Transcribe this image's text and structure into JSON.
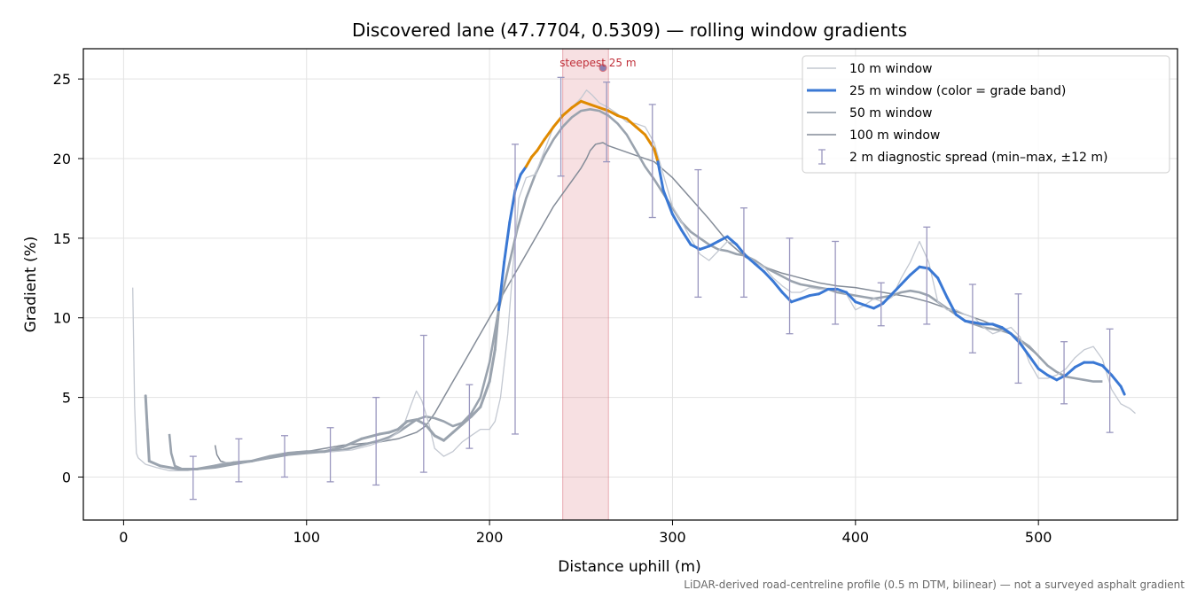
{
  "chart_data": {
    "type": "line",
    "title": "Discovered lane (47.7704, 0.5309) — rolling window gradients",
    "xlabel": "Distance uphill (m)",
    "ylabel": "Gradient (%)",
    "xlim": [
      -22,
      576
    ],
    "ylim": [
      -2.7,
      26.9
    ],
    "xticks": [
      0,
      100,
      200,
      300,
      400,
      500
    ],
    "yticks": [
      0,
      5,
      10,
      15,
      20,
      25
    ],
    "grid": true,
    "legend_placement": "top-right",
    "footnote": "LiDAR-derived road-centreline profile (0.5 m DTM, bilinear) — not a surveyed asphalt gradient",
    "highlight": {
      "x_range": [
        240,
        265
      ],
      "label": "steepest 25 m",
      "peak": [
        262,
        25.7
      ],
      "color": "#d9737d"
    },
    "colors": {
      "w10": "#c3c8d1",
      "w25_low": "#3a78d4",
      "w25_high": "#e08a00",
      "w50": "#9aa3ae",
      "w100": "#848c98",
      "errorbar": "#9a97bf"
    },
    "grade_band_threshold": 20,
    "series": [
      {
        "name": "10 m window",
        "x": [
          5,
          6,
          7,
          8,
          12,
          18,
          25,
          35,
          45,
          55,
          65,
          75,
          85,
          95,
          105,
          115,
          125,
          135,
          145,
          150,
          153,
          157,
          160,
          163,
          167,
          170,
          175,
          180,
          185,
          190,
          195,
          200,
          203,
          206,
          210,
          213,
          216,
          220,
          225,
          230,
          235,
          240,
          245,
          250,
          253,
          256,
          260,
          265,
          270,
          275,
          280,
          285,
          290,
          295,
          300,
          305,
          310,
          315,
          320,
          325,
          330,
          335,
          340,
          345,
          350,
          355,
          360,
          365,
          370,
          375,
          380,
          385,
          390,
          395,
          400,
          405,
          410,
          415,
          420,
          425,
          430,
          435,
          440,
          445,
          450,
          455,
          460,
          465,
          470,
          475,
          480,
          485,
          490,
          495,
          500,
          505,
          510,
          515,
          520,
          525,
          530,
          535,
          540,
          545,
          550,
          553
        ],
        "values": [
          11.9,
          4.5,
          1.5,
          1.2,
          0.8,
          0.6,
          0.4,
          0.4,
          0.6,
          0.9,
          0.9,
          1.1,
          1.4,
          1.6,
          1.6,
          1.6,
          1.7,
          2.0,
          2.4,
          2.8,
          3.2,
          4.5,
          5.4,
          4.8,
          3.3,
          1.8,
          1.3,
          1.6,
          2.2,
          2.6,
          3.0,
          3.0,
          3.5,
          5.0,
          9.0,
          13.5,
          17.5,
          18.8,
          19.0,
          20.5,
          22.0,
          22.8,
          23.2,
          23.8,
          24.3,
          24.0,
          23.5,
          23.2,
          22.8,
          22.3,
          22.2,
          22.0,
          21.0,
          19.0,
          17.0,
          16.0,
          15.0,
          14.0,
          13.6,
          14.2,
          14.8,
          14.6,
          14.0,
          13.5,
          13.2,
          12.5,
          12.0,
          11.6,
          11.6,
          11.9,
          11.8,
          11.8,
          11.8,
          11.5,
          10.5,
          10.8,
          11.2,
          11.0,
          11.3,
          12.5,
          13.5,
          14.8,
          13.5,
          11.0,
          10.5,
          10.5,
          10.2,
          10.0,
          9.4,
          9.0,
          9.2,
          9.4,
          8.8,
          7.2,
          6.2,
          6.2,
          6.4,
          6.8,
          7.5,
          8.0,
          8.2,
          7.4,
          5.5,
          4.6,
          4.3,
          4.0
        ]
      },
      {
        "name": "25 m window (color = grade band)",
        "x": [
          12,
          13,
          14,
          20,
          30,
          40,
          50,
          60,
          70,
          80,
          90,
          100,
          110,
          120,
          130,
          140,
          145,
          150,
          155,
          160,
          165,
          170,
          175,
          180,
          185,
          190,
          195,
          200,
          203,
          205,
          208,
          211,
          214,
          217,
          220,
          223,
          226,
          230,
          235,
          240,
          245,
          250,
          255,
          260,
          265,
          270,
          275,
          280,
          285,
          290,
          292,
          295,
          300,
          305,
          310,
          315,
          320,
          325,
          330,
          335,
          340,
          345,
          350,
          355,
          360,
          365,
          370,
          375,
          380,
          385,
          390,
          395,
          400,
          405,
          410,
          415,
          420,
          425,
          430,
          435,
          440,
          445,
          450,
          455,
          460,
          465,
          470,
          475,
          480,
          485,
          490,
          495,
          500,
          505,
          510,
          515,
          520,
          525,
          530,
          535,
          540,
          545,
          547
        ],
        "values": [
          5.1,
          3.0,
          1.0,
          0.7,
          0.5,
          0.5,
          0.7,
          0.9,
          1.0,
          1.3,
          1.5,
          1.6,
          1.6,
          1.9,
          2.4,
          2.7,
          2.8,
          3.0,
          3.5,
          3.6,
          3.3,
          2.6,
          2.3,
          2.8,
          3.3,
          3.8,
          4.4,
          6.0,
          8.0,
          10.5,
          13.5,
          16.0,
          18.0,
          19.0,
          19.5,
          20.1,
          20.5,
          21.2,
          22.0,
          22.7,
          23.2,
          23.6,
          23.4,
          23.2,
          23.0,
          22.7,
          22.5,
          22.0,
          21.5,
          20.6,
          19.8,
          18.0,
          16.5,
          15.5,
          14.6,
          14.3,
          14.5,
          14.8,
          15.1,
          14.6,
          13.9,
          13.4,
          12.9,
          12.3,
          11.6,
          11.0,
          11.2,
          11.4,
          11.5,
          11.8,
          11.8,
          11.6,
          11.0,
          10.8,
          10.6,
          10.9,
          11.5,
          12.1,
          12.7,
          13.2,
          13.1,
          12.5,
          11.3,
          10.2,
          9.8,
          9.7,
          9.6,
          9.6,
          9.4,
          9.0,
          8.4,
          7.6,
          6.8,
          6.4,
          6.1,
          6.4,
          6.9,
          7.2,
          7.2,
          7.0,
          6.4,
          5.7,
          5.2
        ]
      },
      {
        "name": "50 m window",
        "x": [
          25,
          26,
          28,
          32,
          40,
          50,
          60,
          70,
          80,
          90,
          100,
          110,
          120,
          130,
          140,
          145,
          150,
          155,
          160,
          165,
          170,
          175,
          180,
          185,
          190,
          195,
          200,
          205,
          210,
          215,
          220,
          225,
          230,
          235,
          240,
          245,
          250,
          255,
          260,
          265,
          270,
          275,
          280,
          285,
          290,
          295,
          300,
          305,
          310,
          315,
          320,
          325,
          330,
          335,
          340,
          345,
          350,
          355,
          360,
          365,
          370,
          375,
          380,
          385,
          390,
          395,
          400,
          405,
          410,
          415,
          420,
          425,
          430,
          435,
          440,
          445,
          450,
          455,
          460,
          465,
          470,
          475,
          480,
          485,
          490,
          495,
          500,
          505,
          510,
          515,
          520,
          525,
          530,
          535
        ],
        "values": [
          2.7,
          1.5,
          0.7,
          0.5,
          0.5,
          0.6,
          0.8,
          1.0,
          1.2,
          1.4,
          1.5,
          1.6,
          1.7,
          2.0,
          2.3,
          2.5,
          2.8,
          3.2,
          3.6,
          3.8,
          3.7,
          3.5,
          3.2,
          3.4,
          4.0,
          5.0,
          7.2,
          10.5,
          13.0,
          15.5,
          17.5,
          19.0,
          20.2,
          21.2,
          22.0,
          22.6,
          23.0,
          23.1,
          23.0,
          22.7,
          22.2,
          21.5,
          20.5,
          19.5,
          18.7,
          17.8,
          16.9,
          16.0,
          15.4,
          15.0,
          14.6,
          14.3,
          14.2,
          14.0,
          13.9,
          13.6,
          13.2,
          12.9,
          12.6,
          12.3,
          12.1,
          12.0,
          11.9,
          11.8,
          11.6,
          11.5,
          11.4,
          11.3,
          11.2,
          11.3,
          11.4,
          11.6,
          11.7,
          11.6,
          11.4,
          11.0,
          10.6,
          10.2,
          9.8,
          9.6,
          9.4,
          9.3,
          9.2,
          9.0,
          8.6,
          8.2,
          7.6,
          7.0,
          6.6,
          6.3,
          6.2,
          6.1,
          6.0,
          6.0
        ]
      },
      {
        "name": "100 m window",
        "x": [
          50,
          51,
          53,
          56,
          60,
          70,
          80,
          90,
          100,
          110,
          120,
          130,
          140,
          150,
          160,
          165,
          170,
          175,
          180,
          185,
          190,
          195,
          200,
          205,
          210,
          215,
          220,
          225,
          230,
          235,
          240,
          245,
          250,
          253,
          255,
          258,
          262,
          265,
          270,
          280,
          290,
          300,
          310,
          320,
          330,
          340,
          350,
          360,
          370,
          380,
          390,
          400,
          410,
          420,
          430,
          440,
          450,
          460,
          470,
          480,
          490,
          500,
          505
        ],
        "values": [
          2.0,
          1.4,
          1.0,
          0.9,
          0.9,
          1.0,
          1.2,
          1.4,
          1.6,
          1.8,
          2.0,
          2.1,
          2.2,
          2.4,
          2.8,
          3.2,
          4.0,
          5.0,
          6.0,
          7.0,
          8.0,
          9.0,
          10.0,
          11.0,
          12.0,
          13.0,
          14.0,
          15.0,
          16.0,
          17.0,
          17.8,
          18.6,
          19.4,
          20.0,
          20.5,
          20.9,
          21.0,
          20.8,
          20.6,
          20.2,
          19.8,
          18.8,
          17.5,
          16.2,
          14.8,
          13.8,
          13.2,
          12.8,
          12.5,
          12.2,
          12.0,
          11.9,
          11.7,
          11.5,
          11.3,
          11.0,
          10.6,
          10.2,
          9.8,
          9.3,
          8.6,
          7.6,
          7.0
        ]
      }
    ],
    "errorbars": {
      "label": "2 m diagnostic spread (min–max, ±12 m)",
      "x": [
        38,
        63,
        88,
        113,
        138,
        164,
        189,
        214,
        239,
        264,
        289,
        314,
        339,
        364,
        389,
        414,
        439,
        464,
        489,
        514,
        539
      ],
      "low": [
        -1.4,
        -0.3,
        0.0,
        -0.3,
        -0.5,
        0.3,
        1.8,
        2.7,
        18.9,
        19.8,
        16.3,
        11.3,
        11.3,
        9.0,
        9.6,
        9.5,
        9.6,
        7.8,
        5.9,
        4.6,
        2.8
      ],
      "high": [
        1.3,
        2.4,
        2.6,
        3.1,
        5.0,
        8.9,
        5.8,
        20.9,
        25.1,
        24.8,
        23.4,
        19.3,
        16.9,
        15.0,
        14.8,
        12.2,
        15.7,
        12.1,
        11.5,
        8.5,
        9.3
      ]
    }
  }
}
